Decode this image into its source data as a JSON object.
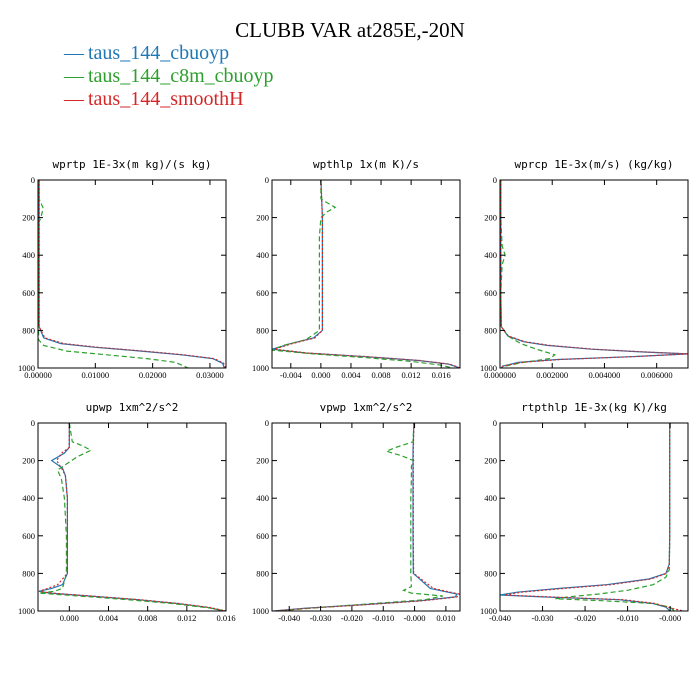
{
  "title": "CLUBB VAR at285E,-20N",
  "legend": [
    {
      "label": "taus_144_cbuoyp",
      "color": "#1f77b4",
      "dash": "—"
    },
    {
      "label": "taus_144_c8m_cbuoyp",
      "color": "#2ca02c",
      "dash": "—"
    },
    {
      "label": "taus_144_smoothH",
      "color": "#d62728",
      "dash": "—"
    }
  ],
  "series_colors": [
    "#1f77b4",
    "#2ca02c",
    "#d62728"
  ],
  "series_dashes": [
    "",
    "5,3",
    "2,2"
  ],
  "chart_data": [
    {
      "type": "line",
      "title": "wprtp  1E-3x(m kg)/(s kg)",
      "xlim": [
        0,
        0.0328
      ],
      "ylim": [
        1000,
        0
      ],
      "xticks": [
        0,
        0.01,
        0.02,
        0.03
      ],
      "xtick_labels": [
        "0.00000",
        "0.01000",
        "0.02000",
        "0.03000"
      ],
      "yticks": [
        0,
        200,
        400,
        600,
        800,
        1000
      ],
      "ytick_labels": [
        "0",
        "200",
        "400",
        "600",
        "800",
        "1000"
      ],
      "series": [
        {
          "p": [
            0,
            200,
            400,
            600,
            780,
            840,
            870,
            890,
            910,
            930,
            950,
            975,
            1000
          ],
          "x": [
            0.0002,
            0.0002,
            0.0002,
            0.0002,
            0.0002,
            0.001,
            0.004,
            0.01,
            0.018,
            0.025,
            0.0305,
            0.0322,
            0.0325
          ]
        },
        {
          "p": [
            0,
            100,
            150,
            200,
            230,
            300,
            600,
            850,
            880,
            910,
            930,
            950,
            970,
            1000
          ],
          "x": [
            0.0002,
            0.0002,
            0.0009,
            0.0005,
            0.0001,
            0.0001,
            0.0001,
            0.0001,
            0.001,
            0.005,
            0.012,
            0.019,
            0.024,
            0.0262
          ]
        },
        {
          "p": [
            0,
            200,
            400,
            600,
            780,
            840,
            870,
            890,
            910,
            930,
            950,
            975,
            1000
          ],
          "x": [
            0.0002,
            0.0002,
            0.0002,
            0.0002,
            0.0002,
            0.0012,
            0.0045,
            0.0105,
            0.0185,
            0.0255,
            0.0308,
            0.0324,
            0.0327
          ]
        }
      ]
    },
    {
      "type": "line",
      "title": "wpthlp  1x(m K)/s",
      "xlim": [
        -0.0065,
        0.0185
      ],
      "ylim": [
        1000,
        0
      ],
      "xticks": [
        -0.004,
        0,
        0.004,
        0.008,
        0.012,
        0.016
      ],
      "xtick_labels": [
        "-0.004",
        "0.000",
        "0.004",
        "0.008",
        "0.012",
        "0.016"
      ],
      "yticks": [
        0,
        200,
        400,
        600,
        800,
        1000
      ],
      "ytick_labels": [
        "0",
        "200",
        "400",
        "600",
        "800",
        "1000"
      ],
      "series": [
        {
          "p": [
            0,
            200,
            400,
            600,
            800,
            840,
            870,
            900,
            920,
            940,
            960,
            980,
            1000
          ],
          "x": [
            0,
            0.0002,
            0.0002,
            0.0002,
            0.0002,
            -0.001,
            -0.004,
            -0.0065,
            -0.002,
            0.006,
            0.013,
            0.017,
            0.0185
          ]
        },
        {
          "p": [
            0,
            100,
            120,
            145,
            170,
            200,
            300,
            400,
            600,
            800,
            850,
            880,
            905,
            925,
            945,
            965,
            985,
            1000
          ],
          "x": [
            0,
            0,
            0.0008,
            0.0019,
            0.0008,
            0,
            -0.0002,
            -0.0002,
            -0.0002,
            -0.0002,
            -0.002,
            -0.005,
            -0.0065,
            -0.001,
            0.006,
            0.012,
            0.016,
            0.0175
          ]
        },
        {
          "p": [
            0,
            200,
            400,
            600,
            800,
            840,
            870,
            900,
            920,
            940,
            960,
            980,
            1000
          ],
          "x": [
            0,
            0.0002,
            0.0002,
            0.0002,
            0.0002,
            -0.0008,
            -0.0038,
            -0.0062,
            -0.0018,
            0.0062,
            0.0132,
            0.0172,
            0.0185
          ]
        }
      ]
    },
    {
      "type": "line",
      "title": "wprcp  1E-3x(m/s) (kg/kg)",
      "xlim": [
        0,
        0.0072
      ],
      "ylim": [
        1000,
        0
      ],
      "xticks": [
        0,
        0.002,
        0.004,
        0.006
      ],
      "xtick_labels": [
        "0.000000",
        "0.002000",
        "0.004000",
        "0.006000"
      ],
      "yticks": [
        0,
        200,
        400,
        600,
        800,
        1000
      ],
      "ytick_labels": [
        "0",
        "200",
        "400",
        "600",
        "800",
        "1000"
      ],
      "series": [
        {
          "p": [
            0,
            200,
            400,
            600,
            780,
            830,
            860,
            880,
            900,
            915,
            925,
            940,
            955,
            970,
            990,
            1000
          ],
          "x": [
            3e-05,
            3e-05,
            3e-05,
            3e-05,
            5e-05,
            0.0003,
            0.0009,
            0.0018,
            0.0035,
            0.0055,
            0.0072,
            0.005,
            0.0022,
            0.0007,
            0.0001,
            5e-05
          ]
        },
        {
          "p": [
            0,
            200,
            350,
            400,
            450,
            600,
            780,
            830,
            870,
            900,
            930,
            950,
            970,
            990,
            1000
          ],
          "x": [
            3e-05,
            3e-05,
            8e-05,
            0.0002,
            8e-05,
            3e-05,
            5e-05,
            0.0003,
            0.0008,
            0.0014,
            0.0021,
            0.0019,
            0.0009,
            0.0002,
            0.0001
          ]
        },
        {
          "p": [
            0,
            200,
            400,
            600,
            780,
            830,
            860,
            880,
            900,
            915,
            925,
            940,
            955,
            970,
            990,
            1000
          ],
          "x": [
            3e-05,
            3e-05,
            3e-05,
            3e-05,
            5e-05,
            0.00032,
            0.00095,
            0.0019,
            0.0036,
            0.0056,
            0.0072,
            0.0051,
            0.0023,
            0.0008,
            0.00012,
            6e-05
          ]
        }
      ]
    },
    {
      "type": "line",
      "title": "upwp  1xm^2/s^2",
      "xlim": [
        -0.0032,
        0.016
      ],
      "ylim": [
        1000,
        0
      ],
      "xticks": [
        0,
        0.004,
        0.008,
        0.012,
        0.016
      ],
      "xtick_labels": [
        "0.000",
        "0.004",
        "0.008",
        "0.012",
        "0.016"
      ],
      "yticks": [
        0,
        200,
        400,
        600,
        800,
        1000
      ],
      "ytick_labels": [
        "0",
        "200",
        "400",
        "600",
        "800",
        "1000"
      ],
      "series": [
        {
          "p": [
            0,
            130,
            160,
            200,
            240,
            280,
            400,
            600,
            800,
            860,
            880,
            895,
            905,
            920,
            940,
            960,
            980,
            1000
          ],
          "x": [
            0,
            0,
            -0.0005,
            -0.0018,
            -0.0007,
            -0.0004,
            -0.0002,
            -0.0002,
            -0.0002,
            -0.0007,
            -0.0018,
            -0.0031,
            -0.002,
            0.002,
            0.007,
            0.011,
            0.014,
            0.0158
          ]
        },
        {
          "p": [
            0,
            100,
            120,
            145,
            180,
            250,
            300,
            400,
            600,
            800,
            880,
            895,
            905,
            920,
            940,
            960,
            985,
            1000
          ],
          "x": [
            0,
            0.0003,
            0.0013,
            0.0022,
            0.0008,
            -0.0012,
            -0.0008,
            -0.0005,
            -0.0003,
            -0.0003,
            -0.0007,
            -0.0015,
            -0.0031,
            0.001,
            0.006,
            0.0105,
            0.0145,
            0.016
          ]
        },
        {
          "p": [
            0,
            130,
            160,
            200,
            240,
            280,
            400,
            600,
            800,
            860,
            880,
            895,
            905,
            920,
            940,
            960,
            980,
            1000
          ],
          "x": [
            0,
            0,
            -0.0008,
            -0.0013,
            -0.0008,
            -0.0004,
            -0.0002,
            -0.0002,
            -0.0002,
            -0.0012,
            -0.0022,
            -0.0031,
            -0.0018,
            0.0022,
            0.0072,
            0.0112,
            0.0142,
            0.016
          ]
        }
      ]
    },
    {
      "type": "line",
      "title": "vpwp  1xm^2/s^2",
      "xlim": [
        -0.0455,
        0.0145
      ],
      "ylim": [
        1000,
        0
      ],
      "xticks": [
        -0.04,
        -0.03,
        -0.02,
        -0.01,
        0,
        0.01
      ],
      "xtick_labels": [
        "-0.040",
        "-0.030",
        "-0.020",
        "-0.010",
        "-0.000",
        "0.010"
      ],
      "yticks": [
        0,
        200,
        400,
        600,
        800,
        1000
      ],
      "ytick_labels": [
        "0",
        "200",
        "400",
        "600",
        "800",
        "1000"
      ],
      "series": [
        {
          "p": [
            0,
            150,
            200,
            400,
            600,
            800,
            880,
            910,
            925,
            945,
            965,
            985,
            1000
          ],
          "x": [
            -0.0002,
            -0.0005,
            -0.0005,
            -0.0005,
            -0.0005,
            -0.0004,
            0.005,
            0.0135,
            0.013,
            0.002,
            -0.015,
            -0.035,
            -0.045
          ]
        },
        {
          "p": [
            0,
            100,
            130,
            150,
            175,
            200,
            230,
            300,
            400,
            600,
            800,
            870,
            890,
            905,
            920,
            940,
            960,
            985,
            1000
          ],
          "x": [
            -0.0002,
            -0.0005,
            -0.006,
            -0.009,
            -0.004,
            -0.0003,
            -0.001,
            -0.001,
            -0.0012,
            -0.0012,
            -0.0012,
            -0.001,
            -0.0035,
            -0.001,
            0.009,
            0.0035,
            -0.013,
            -0.033,
            -0.044
          ]
        },
        {
          "p": [
            0,
            150,
            200,
            400,
            600,
            800,
            880,
            910,
            925,
            945,
            965,
            985,
            1000
          ],
          "x": [
            -0.0002,
            -0.0004,
            -0.0004,
            -0.0004,
            -0.0004,
            -0.0003,
            0.006,
            0.0142,
            0.0135,
            0.003,
            -0.014,
            -0.034,
            -0.0448
          ]
        }
      ]
    },
    {
      "type": "line",
      "title": "rtpthlp  1E-3x(kg K)/kg",
      "xlim": [
        -0.04,
        0.0042
      ],
      "ylim": [
        1000,
        0
      ],
      "xticks": [
        -0.04,
        -0.03,
        -0.02,
        -0.01,
        0
      ],
      "xtick_labels": [
        "-0.040",
        "-0.030",
        "-0.020",
        "-0.010",
        "-0.000"
      ],
      "yticks": [
        0,
        200,
        400,
        600,
        800,
        1000
      ],
      "ytick_labels": [
        "0",
        "200",
        "400",
        "600",
        "800",
        "1000"
      ],
      "series": [
        {
          "p": [
            0,
            200,
            400,
            600,
            750,
            800,
            830,
            860,
            880,
            900,
            915,
            925,
            940,
            960,
            980,
            1000
          ],
          "x": [
            -0.0001,
            -0.0001,
            -0.0001,
            -0.0001,
            -0.0002,
            -0.001,
            -0.005,
            -0.015,
            -0.026,
            -0.036,
            -0.04,
            -0.03,
            -0.012,
            -0.004,
            -0.001,
            0
          ]
        },
        {
          "p": [
            0,
            200,
            400,
            600,
            780,
            820,
            860,
            890,
            910,
            925,
            935,
            945,
            960,
            980,
            1000
          ],
          "x": [
            -0.0001,
            -0.0001,
            -0.0001,
            -0.0001,
            -0.0002,
            -0.001,
            -0.004,
            -0.01,
            -0.017,
            -0.024,
            -0.027,
            -0.016,
            -0.004,
            0,
            0.001
          ]
        },
        {
          "p": [
            0,
            200,
            400,
            600,
            750,
            800,
            830,
            860,
            880,
            900,
            915,
            925,
            940,
            960,
            980,
            1000
          ],
          "x": [
            -0.0001,
            -0.0001,
            -0.0001,
            -0.0001,
            -0.0002,
            -0.0008,
            -0.0045,
            -0.014,
            -0.025,
            -0.035,
            -0.039,
            -0.0285,
            -0.011,
            -0.0035,
            -0.0005,
            0.003
          ]
        }
      ]
    }
  ]
}
